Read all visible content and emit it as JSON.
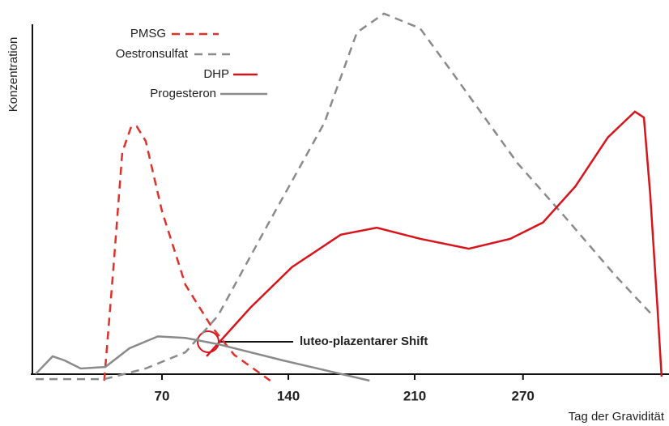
{
  "chart_data": {
    "type": "line",
    "y_label": "Konzentration",
    "x_label": "Tag der Gravidität",
    "annotation": "luteo-plazentarer Shift",
    "xlim": [
      0,
      350
    ],
    "ylim": [
      0,
      100
    ],
    "xticks": [
      70,
      140,
      210,
      270
    ],
    "series": [
      {
        "name": "PMSG",
        "color": "#e0302a",
        "style": "dashed",
        "x": [
          38,
          43,
          48,
          53,
          56,
          61,
          70,
          83,
          97,
          110,
          130
        ],
        "values": [
          0,
          30,
          62,
          69,
          69,
          65,
          46,
          26,
          15,
          7,
          0
        ]
      },
      {
        "name": "Oestronsulfat",
        "color": "#8a8a8a",
        "style": "dashed",
        "x": [
          0,
          38,
          61,
          83,
          101,
          128,
          160,
          178,
          193,
          213,
          231,
          267,
          294,
          321,
          342
        ],
        "values": [
          0.4,
          0.4,
          3.3,
          7.7,
          17.6,
          41.8,
          70,
          94.5,
          99.6,
          95.6,
          83.5,
          59,
          44,
          28.6,
          17.6
        ]
      },
      {
        "name": "DHP",
        "color": "#d7141b",
        "style": "solid",
        "x": [
          94.7,
          119,
          142,
          169,
          189,
          213,
          240,
          263,
          281,
          299,
          317,
          332,
          337,
          340.5,
          344.5,
          346.8
        ],
        "values": [
          6.6,
          19.8,
          30.8,
          39.6,
          41.5,
          38.5,
          35.8,
          38.5,
          42.9,
          52.7,
          66,
          73,
          71.4,
          50.5,
          19.8,
          1.1
        ]
      },
      {
        "name": "Progesteron",
        "color": "#8a8a8a",
        "style": "solid",
        "x": [
          0,
          9.4,
          16,
          25,
          38.6,
          52,
          67.7,
          83,
          101,
          137,
          185
        ],
        "values": [
          1.8,
          6.6,
          5.5,
          3.3,
          3.7,
          8.8,
          12,
          11.6,
          9.9,
          5.5,
          0
        ]
      }
    ]
  }
}
